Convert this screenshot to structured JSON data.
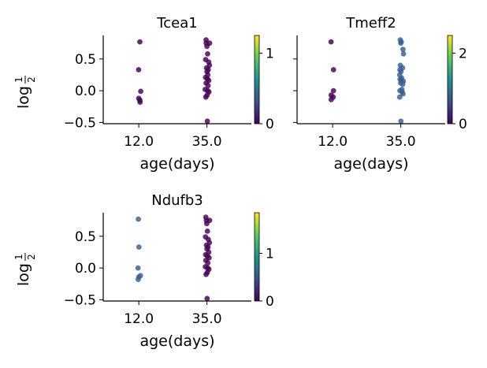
{
  "chart_data": [
    {
      "type": "scatter",
      "title": "Tcea1",
      "xlabel": "age(days)",
      "ylabel": "log",
      "ylabel_frac_num": "1",
      "ylabel_frac_den": "2",
      "x_categories": [
        "12.0",
        "35.0"
      ],
      "yticks": [
        "0.5",
        "0.0",
        "−0.5"
      ],
      "ylim": [
        -0.52,
        0.87
      ],
      "show_ytick_labels": true,
      "colorbar": {
        "range": [
          0,
          1.25
        ],
        "ticks": [
          "0",
          "1"
        ],
        "tick_values": [
          0,
          1
        ],
        "colormap": "viridis"
      },
      "points": [
        {
          "cat": 0,
          "jitter": 0.12,
          "y": 0.77,
          "c": 0
        },
        {
          "cat": 0,
          "jitter": -0.02,
          "y": 0.33,
          "c": 0
        },
        {
          "cat": 0,
          "jitter": 0.22,
          "y": -0.01,
          "c": 0
        },
        {
          "cat": 0,
          "jitter": 0.0,
          "y": -0.12,
          "c": 0
        },
        {
          "cat": 0,
          "jitter": 0.12,
          "y": -0.15,
          "c": 0
        },
        {
          "cat": 0,
          "jitter": 0.14,
          "y": -0.18,
          "c": 0
        },
        {
          "cat": 1,
          "jitter": -0.1,
          "y": 0.8,
          "c": 0
        },
        {
          "cat": 1,
          "jitter": -0.08,
          "y": 0.75,
          "c": 0
        },
        {
          "cat": 1,
          "jitter": 0.3,
          "y": 0.75,
          "c": 0
        },
        {
          "cat": 1,
          "jitter": 0.0,
          "y": 0.7,
          "c": 0
        },
        {
          "cat": 1,
          "jitter": 0.08,
          "y": 0.58,
          "c": 0
        },
        {
          "cat": 1,
          "jitter": -0.14,
          "y": 0.49,
          "c": 0
        },
        {
          "cat": 1,
          "jitter": 0.2,
          "y": 0.45,
          "c": 0
        },
        {
          "cat": 1,
          "jitter": 0.28,
          "y": 0.4,
          "c": 0
        },
        {
          "cat": 1,
          "jitter": -0.04,
          "y": 0.36,
          "c": 0
        },
        {
          "cat": 1,
          "jitter": 0.15,
          "y": 0.33,
          "c": 0
        },
        {
          "cat": 1,
          "jitter": 0.0,
          "y": 0.3,
          "c": 0
        },
        {
          "cat": 1,
          "jitter": 0.1,
          "y": 0.25,
          "c": 0
        },
        {
          "cat": 1,
          "jitter": -0.15,
          "y": 0.21,
          "c": 0
        },
        {
          "cat": 1,
          "jitter": 0.05,
          "y": 0.19,
          "c": 0
        },
        {
          "cat": 1,
          "jitter": 0.2,
          "y": 0.16,
          "c": 0
        },
        {
          "cat": 1,
          "jitter": -0.1,
          "y": 0.12,
          "c": 0
        },
        {
          "cat": 1,
          "jitter": 0.12,
          "y": 0.08,
          "c": 0
        },
        {
          "cat": 1,
          "jitter": -0.2,
          "y": 0.02,
          "c": 0
        },
        {
          "cat": 1,
          "jitter": 0.08,
          "y": 0.0,
          "c": 0
        },
        {
          "cat": 1,
          "jitter": 0.22,
          "y": -0.02,
          "c": 0
        },
        {
          "cat": 1,
          "jitter": 0.02,
          "y": -0.07,
          "c": 0
        },
        {
          "cat": 1,
          "jitter": -0.12,
          "y": -0.1,
          "c": 0
        },
        {
          "cat": 1,
          "jitter": 0.04,
          "y": -0.48,
          "c": 0
        }
      ]
    },
    {
      "type": "scatter",
      "title": "Tmeff2",
      "xlabel": "age(days)",
      "ylabel": "",
      "x_categories": [
        "12.0",
        "35.0"
      ],
      "yticks": [],
      "ylim": [
        -0.52,
        0.87
      ],
      "show_ytick_labels": false,
      "colorbar": {
        "range": [
          0,
          2.5
        ],
        "ticks": [
          "0",
          "2"
        ],
        "tick_values": [
          0,
          2
        ],
        "colormap": "viridis"
      },
      "points": [
        {
          "cat": 0,
          "jitter": -0.18,
          "y": 0.77,
          "c": 0
        },
        {
          "cat": 0,
          "jitter": 0.1,
          "y": 0.33,
          "c": 0
        },
        {
          "cat": 0,
          "jitter": 0.1,
          "y": 0.0,
          "c": 0
        },
        {
          "cat": 0,
          "jitter": -0.16,
          "y": -0.07,
          "c": 0
        },
        {
          "cat": 0,
          "jitter": 0.06,
          "y": -0.1,
          "c": 0
        },
        {
          "cat": 0,
          "jitter": -0.16,
          "y": -0.14,
          "c": 0
        },
        {
          "cat": 1,
          "jitter": -0.06,
          "y": 0.8,
          "c": 1
        },
        {
          "cat": 1,
          "jitter": 0.05,
          "y": 0.77,
          "c": 1
        },
        {
          "cat": 1,
          "jitter": 0.0,
          "y": 0.75,
          "c": 1
        },
        {
          "cat": 1,
          "jitter": 0.25,
          "y": 0.65,
          "c": 1
        },
        {
          "cat": 1,
          "jitter": 0.3,
          "y": 0.58,
          "c": 1
        },
        {
          "cat": 1,
          "jitter": -0.05,
          "y": 0.4,
          "c": 1
        },
        {
          "cat": 1,
          "jitter": 0.2,
          "y": 0.36,
          "c": 1
        },
        {
          "cat": 1,
          "jitter": -0.1,
          "y": 0.33,
          "c": 1
        },
        {
          "cat": 1,
          "jitter": 0.03,
          "y": 0.3,
          "c": 1
        },
        {
          "cat": 1,
          "jitter": -0.12,
          "y": 0.25,
          "c": 1
        },
        {
          "cat": 1,
          "jitter": 0.1,
          "y": 0.2,
          "c": 1
        },
        {
          "cat": 1,
          "jitter": -0.08,
          "y": 0.18,
          "c": 1
        },
        {
          "cat": 1,
          "jitter": 0.05,
          "y": 0.16,
          "c": 1
        },
        {
          "cat": 1,
          "jitter": 0.28,
          "y": 0.15,
          "c": 1
        },
        {
          "cat": 1,
          "jitter": -0.02,
          "y": 0.12,
          "c": 1
        },
        {
          "cat": 1,
          "jitter": 0.22,
          "y": 0.1,
          "c": 1
        },
        {
          "cat": 1,
          "jitter": 0.12,
          "y": 0.02,
          "c": 1
        },
        {
          "cat": 1,
          "jitter": -0.1,
          "y": 0.0,
          "c": 1
        },
        {
          "cat": 1,
          "jitter": 0.15,
          "y": -0.02,
          "c": 1
        },
        {
          "cat": 1,
          "jitter": 0.25,
          "y": -0.05,
          "c": 1
        },
        {
          "cat": 1,
          "jitter": -0.12,
          "y": -0.1,
          "c": 1
        },
        {
          "cat": 1,
          "jitter": 0.02,
          "y": -0.48,
          "c": 1
        }
      ]
    },
    {
      "type": "scatter",
      "title": "Ndufb3",
      "xlabel": "age(days)",
      "ylabel": "log",
      "ylabel_frac_num": "1",
      "ylabel_frac_den": "2",
      "x_categories": [
        "12.0",
        "35.0"
      ],
      "yticks": [
        "0.5",
        "0.0",
        "−0.5"
      ],
      "ylim": [
        -0.52,
        0.87
      ],
      "show_ytick_labels": true,
      "colorbar": {
        "range": [
          0,
          1.85
        ],
        "ticks": [
          "0",
          "1"
        ],
        "tick_values": [
          0,
          1
        ],
        "colormap": "viridis"
      },
      "points": [
        {
          "cat": 0,
          "jitter": -0.05,
          "y": 0.77,
          "c": 1
        },
        {
          "cat": 0,
          "jitter": 0.02,
          "y": 0.33,
          "c": 1
        },
        {
          "cat": 0,
          "jitter": -0.08,
          "y": 0.0,
          "c": 1
        },
        {
          "cat": 0,
          "jitter": 0.18,
          "y": -0.12,
          "c": 1
        },
        {
          "cat": 0,
          "jitter": 0.0,
          "y": -0.14,
          "c": 1
        },
        {
          "cat": 0,
          "jitter": -0.06,
          "y": -0.18,
          "c": 1
        },
        {
          "cat": 1,
          "jitter": -0.12,
          "y": 0.8,
          "c": 0
        },
        {
          "cat": 1,
          "jitter": -0.06,
          "y": 0.75,
          "c": 0
        },
        {
          "cat": 1,
          "jitter": 0.3,
          "y": 0.75,
          "c": 0
        },
        {
          "cat": 1,
          "jitter": -0.02,
          "y": 0.7,
          "c": 0
        },
        {
          "cat": 1,
          "jitter": 0.05,
          "y": 0.58,
          "c": 0
        },
        {
          "cat": 1,
          "jitter": -0.16,
          "y": 0.49,
          "c": 0
        },
        {
          "cat": 1,
          "jitter": 0.15,
          "y": 0.45,
          "c": 0
        },
        {
          "cat": 1,
          "jitter": 0.28,
          "y": 0.4,
          "c": 0
        },
        {
          "cat": 1,
          "jitter": -0.05,
          "y": 0.36,
          "c": 0
        },
        {
          "cat": 1,
          "jitter": 0.12,
          "y": 0.33,
          "c": 0
        },
        {
          "cat": 1,
          "jitter": 0.0,
          "y": 0.3,
          "c": 0
        },
        {
          "cat": 1,
          "jitter": 0.2,
          "y": 0.25,
          "c": 0
        },
        {
          "cat": 1,
          "jitter": -0.14,
          "y": 0.21,
          "c": 0
        },
        {
          "cat": 1,
          "jitter": 0.06,
          "y": 0.19,
          "c": 0
        },
        {
          "cat": 1,
          "jitter": 0.24,
          "y": 0.16,
          "c": 0
        },
        {
          "cat": 1,
          "jitter": -0.12,
          "y": 0.12,
          "c": 0
        },
        {
          "cat": 1,
          "jitter": 0.1,
          "y": 0.08,
          "c": 0
        },
        {
          "cat": 1,
          "jitter": -0.18,
          "y": 0.02,
          "c": 0
        },
        {
          "cat": 1,
          "jitter": 0.08,
          "y": 0.0,
          "c": 0
        },
        {
          "cat": 1,
          "jitter": 0.22,
          "y": -0.02,
          "c": 0
        },
        {
          "cat": 1,
          "jitter": 0.04,
          "y": -0.07,
          "c": 0
        },
        {
          "cat": 1,
          "jitter": -0.1,
          "y": -0.1,
          "c": 0
        },
        {
          "cat": 1,
          "jitter": 0.02,
          "y": -0.48,
          "c": 0
        }
      ]
    }
  ],
  "colors": {
    "low": "#440154",
    "high": "#3b5f8f",
    "axis": "#000000"
  }
}
